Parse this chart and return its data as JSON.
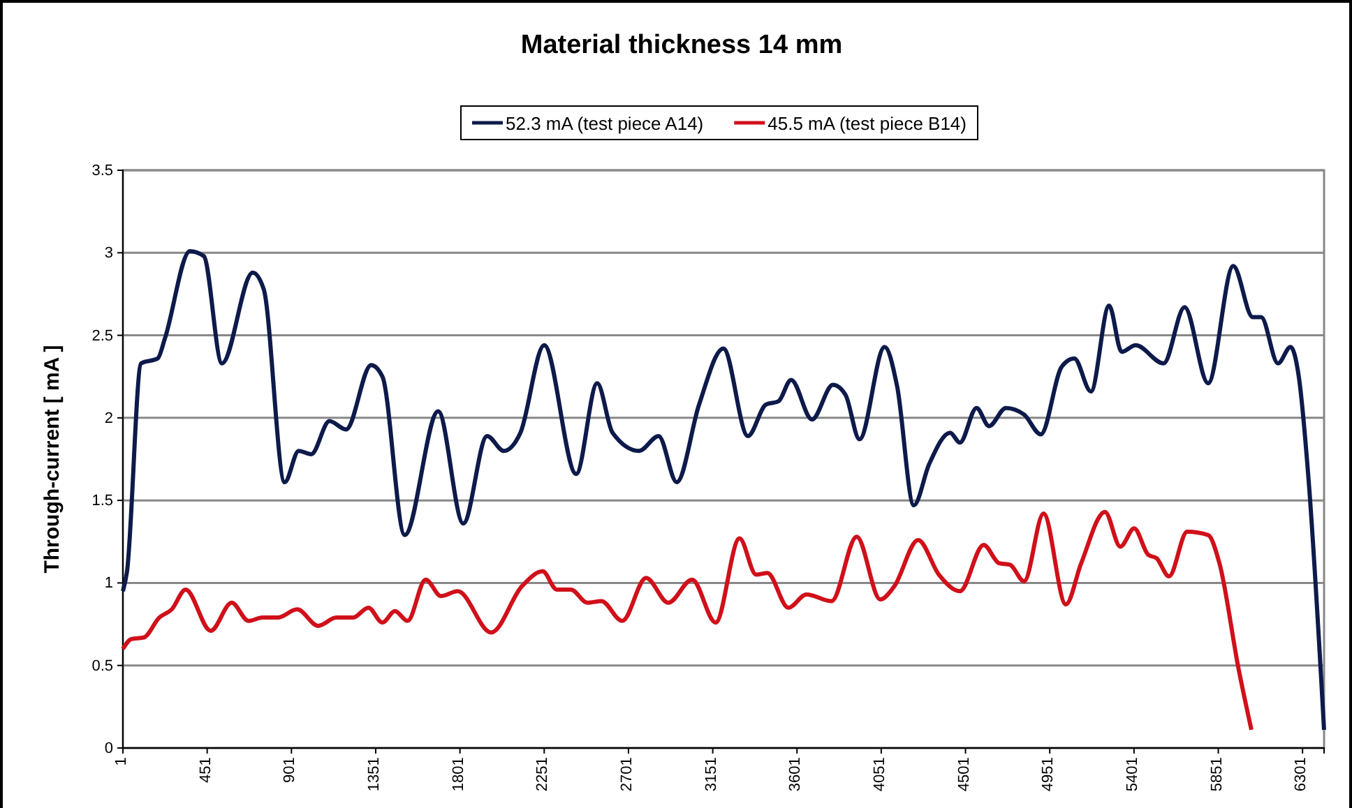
{
  "chart_data": {
    "type": "line",
    "title": "Material thickness 14 mm",
    "ylabel": "Through-current [ mA ]",
    "xlim": [
      1,
      6416
    ],
    "xticks": [
      1,
      451,
      901,
      1351,
      1801,
      2251,
      2701,
      3151,
      3601,
      4051,
      4501,
      4951,
      5401,
      5851,
      6301
    ],
    "ylim": [
      0,
      3.5
    ],
    "yticks": [
      0,
      0.5,
      1,
      1.5,
      2,
      2.5,
      3,
      3.5
    ],
    "grid": "y",
    "legend": "top",
    "marker": "none",
    "line_style": "solid",
    "series": [
      {
        "name": "52.3 mA (test piece A14)",
        "color": "#0d1a4a",
        "x": [
          1,
          23,
          98,
          187,
          225,
          359,
          433,
          530,
          694,
          753,
          865,
          940,
          1007,
          1104,
          1193,
          1327,
          1387,
          1506,
          1685,
          1819,
          1946,
          2035,
          2124,
          2251,
          2422,
          2534,
          2616,
          2758,
          2862,
          2959,
          3078,
          3208,
          3339,
          3435,
          3502,
          3570,
          3681,
          3793,
          3860,
          3935,
          4069,
          4136,
          4225,
          4307,
          4419,
          4471,
          4560,
          4627,
          4717,
          4814,
          4903,
          5015,
          5082,
          5171,
          5268,
          5335,
          5410,
          5559,
          5671,
          5797,
          5931,
          6035,
          6080,
          6170,
          6237,
          6281,
          6333,
          6416
        ],
        "values": [
          0.95,
          1.07,
          2.33,
          2.36,
          2.48,
          3.01,
          2.98,
          2.33,
          2.88,
          2.78,
          1.61,
          1.8,
          1.78,
          1.98,
          1.93,
          2.32,
          2.25,
          1.29,
          2.04,
          1.36,
          1.89,
          1.8,
          1.91,
          2.44,
          1.66,
          2.21,
          1.91,
          1.8,
          1.89,
          1.61,
          2.08,
          2.42,
          1.89,
          2.08,
          2.1,
          2.23,
          1.99,
          2.2,
          2.14,
          1.87,
          2.43,
          2.19,
          1.47,
          1.72,
          1.91,
          1.85,
          2.06,
          1.95,
          2.06,
          2.02,
          1.9,
          2.31,
          2.36,
          2.16,
          2.68,
          2.4,
          2.44,
          2.33,
          2.67,
          2.21,
          2.92,
          2.61,
          2.61,
          2.33,
          2.43,
          2.25,
          1.63,
          0.11
        ]
      },
      {
        "name": "45.5 mA (test piece B14)",
        "color": "#d0101a",
        "x": [
          1,
          46,
          113,
          195,
          262,
          336,
          470,
          582,
          672,
          746,
          828,
          932,
          1044,
          1141,
          1230,
          1312,
          1387,
          1454,
          1521,
          1618,
          1700,
          1789,
          1968,
          2132,
          2243,
          2318,
          2393,
          2482,
          2556,
          2668,
          2795,
          2914,
          3041,
          3167,
          3294,
          3383,
          3443,
          3555,
          3652,
          3786,
          3920,
          4046,
          4121,
          4248,
          4359,
          4471,
          4598,
          4680,
          4739,
          4814,
          4918,
          5037,
          5119,
          5246,
          5328,
          5402,
          5477,
          5521,
          5588,
          5685,
          5797,
          5857,
          5961,
          6028
        ],
        "values": [
          0.6,
          0.66,
          0.67,
          0.79,
          0.84,
          0.96,
          0.71,
          0.88,
          0.77,
          0.79,
          0.79,
          0.84,
          0.74,
          0.79,
          0.79,
          0.85,
          0.76,
          0.83,
          0.77,
          1.02,
          0.92,
          0.95,
          0.7,
          0.98,
          1.07,
          0.96,
          0.96,
          0.88,
          0.89,
          0.77,
          1.03,
          0.88,
          1.02,
          0.76,
          1.27,
          1.05,
          1.06,
          0.85,
          0.93,
          0.89,
          1.28,
          0.9,
          0.98,
          1.26,
          1.05,
          0.95,
          1.23,
          1.12,
          1.11,
          1.01,
          1.42,
          0.87,
          1.12,
          1.43,
          1.22,
          1.33,
          1.17,
          1.15,
          1.04,
          1.31,
          1.29,
          1.12,
          0.47,
          0.11
        ]
      }
    ]
  }
}
